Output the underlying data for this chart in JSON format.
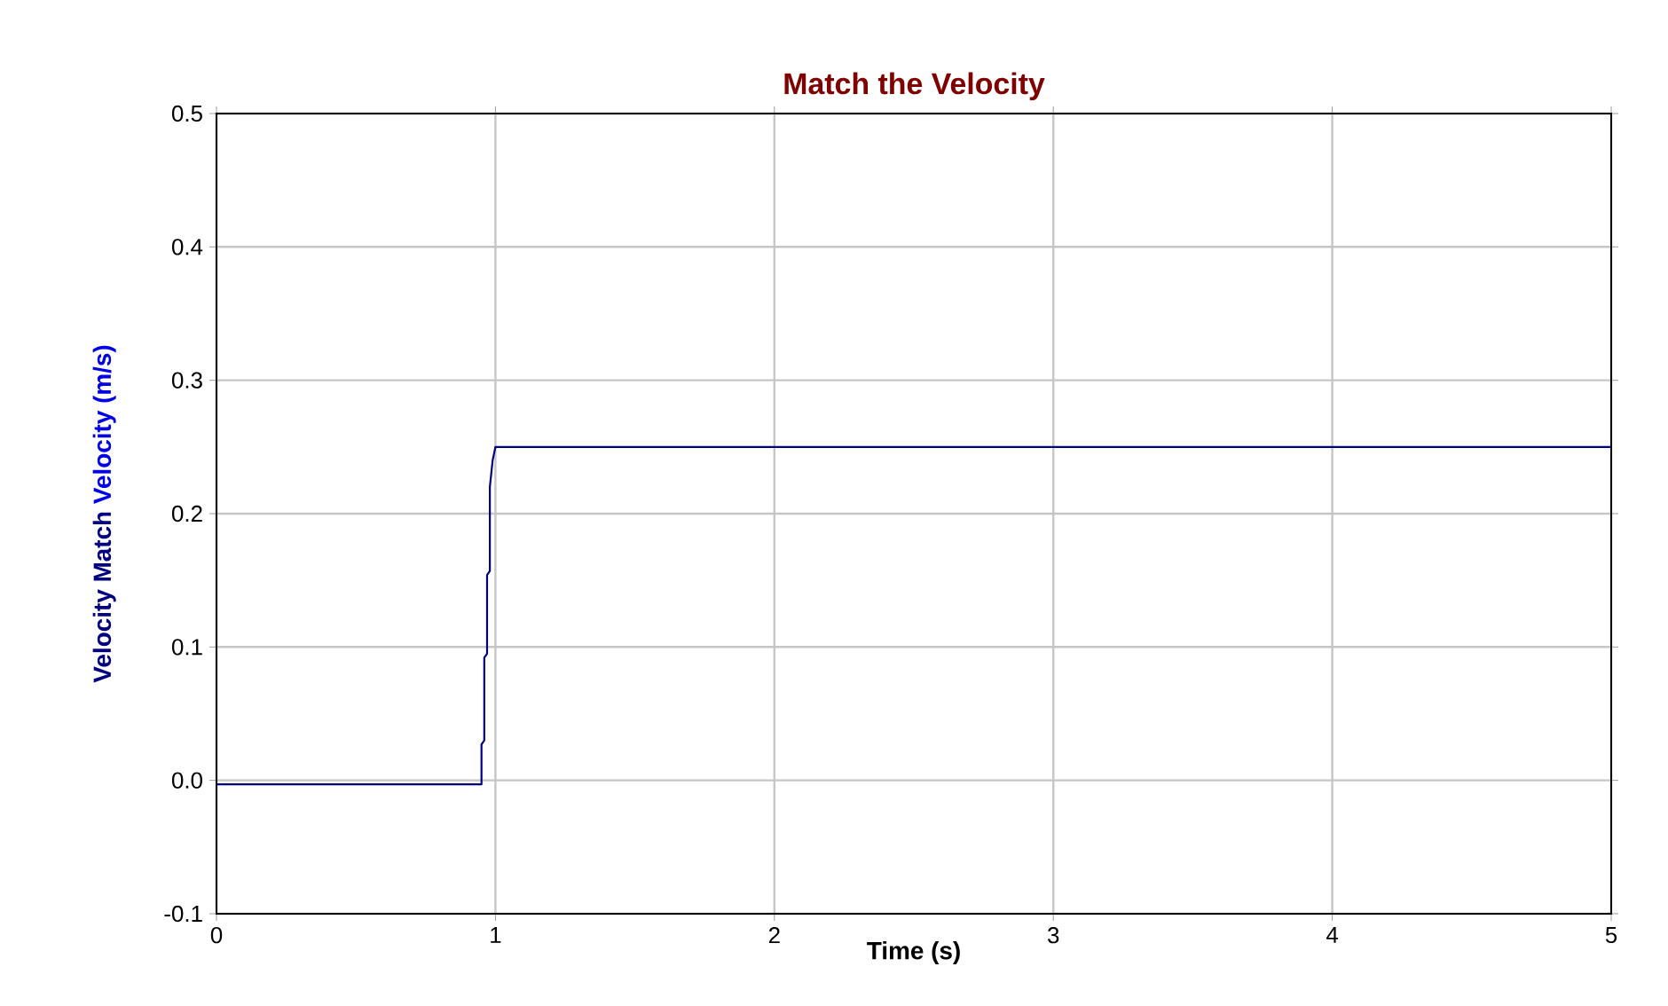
{
  "chart_data": {
    "type": "line",
    "title": "Match the Velocity",
    "xlabel": "Time (s)",
    "ylabel": "Velocity (m/s)",
    "xlim": [
      0,
      5
    ],
    "xticks": [
      0,
      1,
      2,
      3,
      4,
      5
    ],
    "ylim": [
      -0.1,
      0.5
    ],
    "yticks": [
      {
        "value": -0.1,
        "label": "-0.1"
      },
      {
        "value": 0,
        "label": "0.0"
      },
      0.1,
      0.2,
      0.3,
      0.4,
      0.5
    ],
    "grid": true,
    "line_style": "solid",
    "series": [
      {
        "name": "Velocity Match",
        "color": "#000080",
        "x": [
          0,
          0.95,
          0.95,
          0.96,
          0.96,
          0.97,
          0.97,
          0.98,
          0.98,
          0.99,
          1.0,
          5
        ],
        "values": [
          -0.003,
          -0.003,
          0.027,
          0.03,
          0.092,
          0.095,
          0.154,
          0.157,
          0.22,
          0.24,
          0.25,
          0.25
        ]
      }
    ]
  }
}
